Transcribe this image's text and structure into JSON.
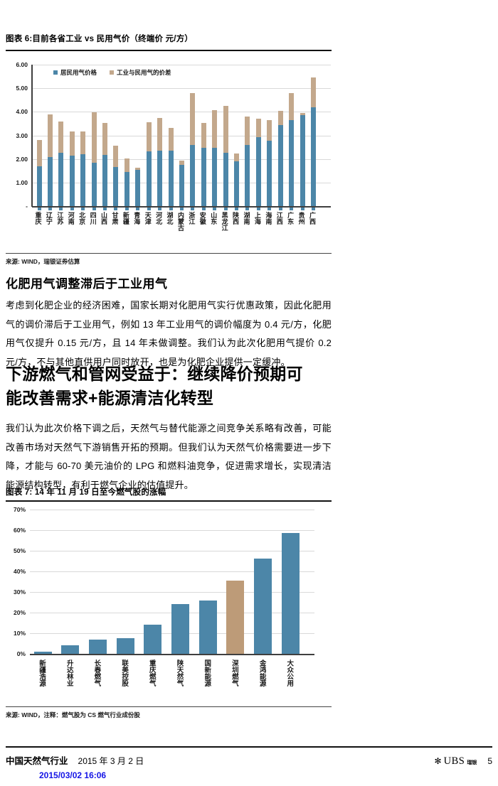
{
  "figure6": {
    "title": "图表 6:目前各省工业 vs 民用气价（终端价 元/方）",
    "source": "来源: WIND，瑞银证券估算"
  },
  "section_fertilizer": {
    "heading": "化肥用气调整滞后于工业用气",
    "paragraph": "考虑到化肥企业的经济困难，国家长期对化肥用气实行优惠政策，因此化肥用气的调价滞后于工业用气，例如 13 年工业用气的调价幅度为 0.4 元/方，化肥用气仅提升 0.15 元/方，且 14 年未做调整。我们认为此次化肥用气提价 0.2 元/方，不与其他直供用户同时放开，也是为化肥企业提供一定缓冲。"
  },
  "section_downstream": {
    "heading": "下游燃气和管网受益于：继续降价预期可能改善需求+能源清洁化转型",
    "paragraph": "我们认为此次价格下调之后，天然气与替代能源之间竞争关系略有改善，可能改善市场对天然气下游销售开拓的预期。但我们认为天然气价格需要进一步下降，才能与 60-70 美元油价的 LPG 和燃料油竞争，促进需求增长，实现清洁能源结构转型，有利于燃气企业的估值提升。"
  },
  "figure7": {
    "title": "图表 7: 14 年 11 月 19 日至今燃气股的涨幅",
    "source": "来源: WIND，注释：燃气股为 CS 燃气行业成份股"
  },
  "footer": {
    "doc_title": "中国天然气行业",
    "date": "2015 年 3 月 2 日",
    "brand": "UBS",
    "brand_cn": "瑞银",
    "page_number": "5",
    "timestamp": "2015/03/02 16:06"
  },
  "chart_data": [
    {
      "type": "bar",
      "stacked": true,
      "title": "目前各省工业 vs 民用气价（终端价 元/方）",
      "categories": [
        "重庆",
        "辽宁",
        "江苏",
        "河南",
        "北京",
        "四川",
        "山西",
        "甘肃",
        "新疆",
        "青海",
        "天津",
        "河北",
        "湖北",
        "内蒙古",
        "浙江",
        "安徽",
        "山东",
        "黑龙江",
        "陕西",
        "湖南",
        "上海",
        "海南",
        "江西",
        "广东",
        "贵州",
        "广西"
      ],
      "series": [
        {
          "name": "居民用气价格",
          "color": "#4c86a8",
          "values": [
            1.7,
            2.08,
            2.25,
            2.15,
            2.2,
            1.85,
            2.17,
            1.67,
            1.45,
            1.55,
            2.32,
            2.35,
            2.35,
            1.75,
            2.6,
            2.48,
            2.47,
            2.27,
            1.9,
            2.6,
            2.93,
            2.78,
            3.43,
            3.65,
            3.87,
            4.18
          ]
        },
        {
          "name": "工业与民用气的价差",
          "color": "#c3a88c",
          "values": [
            1.1,
            1.8,
            1.35,
            1.02,
            0.97,
            2.12,
            1.36,
            0.9,
            0.58,
            0.07,
            1.25,
            1.4,
            0.98,
            0.18,
            2.18,
            1.05,
            1.6,
            1.98,
            0.32,
            1.2,
            0.79,
            0.87,
            0.6,
            1.13,
            0.08,
            1.27
          ]
        }
      ],
      "ylim": [
        0,
        6
      ],
      "ytick_labels": [
        "-",
        "1.00",
        "2.00",
        "3.00",
        "4.00",
        "5.00",
        "6.00"
      ],
      "grid": true,
      "legend_position": "top-left-inside"
    },
    {
      "type": "bar",
      "stacked": false,
      "title": "14 年 11 月 19 日至今燃气股的涨幅",
      "categories": [
        "新疆浩源",
        "升达林业",
        "长春燃气",
        "联美控股",
        "重庆燃气",
        "陕天然气",
        "国新能源",
        "深圳燃气",
        "金鸿能源",
        "大众公用"
      ],
      "values": [
        1.2,
        4.0,
        7.0,
        7.5,
        14.3,
        24.0,
        25.7,
        35.5,
        46.3,
        58.5
      ],
      "unit": "%",
      "bar_color": "#4c86a8",
      "highlight_index": 7,
      "highlight_color": "#bd9b78",
      "ylim": [
        0,
        70
      ],
      "ytick_labels": [
        "0%",
        "10%",
        "20%",
        "30%",
        "40%",
        "50%",
        "60%",
        "70%"
      ],
      "grid": true,
      "legend_position": "none"
    }
  ]
}
